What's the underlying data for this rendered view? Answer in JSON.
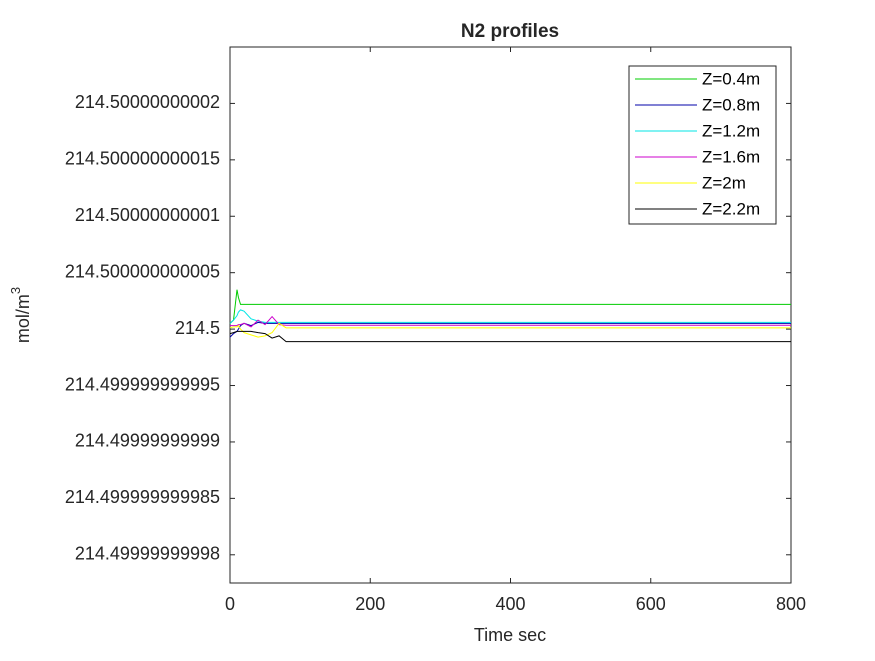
{
  "chart_data": {
    "type": "line",
    "title": "N2 profiles",
    "xlabel": "Time sec",
    "ylabel": {
      "text": "mol/m",
      "sup": "3"
    },
    "x": [
      0,
      5,
      10,
      12,
      15,
      20,
      30,
      40,
      50,
      60,
      70,
      80,
      90,
      800
    ],
    "series": [
      {
        "name": "Z=0.4m",
        "color": "#00cc00",
        "values": [
          214.5000000000005,
          214.5000000000008,
          214.5000000000035,
          214.5000000000028,
          214.5000000000022,
          214.5000000000022,
          214.5000000000022,
          214.5000000000022,
          214.5000000000022,
          214.5000000000022,
          214.5000000000022,
          214.5000000000022,
          214.5000000000022,
          214.5000000000022
        ]
      },
      {
        "name": "Z=0.8m",
        "color": "#0000aa",
        "values": [
          214.4999999999993,
          214.4999999999996,
          214.4999999999998,
          214.5,
          214.5000000000003,
          214.5000000000005,
          214.5000000000003,
          214.5000000000006,
          214.5000000000005,
          214.5000000000005,
          214.5000000000005,
          214.5000000000005,
          214.5000000000005,
          214.5000000000005
        ]
      },
      {
        "name": "Z=1.2m",
        "color": "#00e5e5",
        "values": [
          214.5000000000005,
          214.5000000000008,
          214.5000000000012,
          214.5000000000015,
          214.5000000000017,
          214.5000000000016,
          214.5000000000009,
          214.5000000000007,
          214.5000000000006,
          214.5000000000006,
          214.5000000000006,
          214.5000000000006,
          214.5000000000006,
          214.5000000000006
        ]
      },
      {
        "name": "Z=1.6m",
        "color": "#cc00cc",
        "values": [
          214.5000000000003,
          214.5000000000003,
          214.5000000000003,
          214.5000000000004,
          214.5000000000004,
          214.5000000000005,
          214.5000000000002,
          214.5000000000008,
          214.5000000000004,
          214.5000000000011,
          214.5000000000004,
          214.50000000000034,
          214.50000000000034,
          214.50000000000034
        ]
      },
      {
        "name": "Z=2m",
        "color": "#ffff00",
        "values": [
          214.5000000000001,
          214.5000000000002,
          214.5000000000002,
          214.5000000000003,
          214.5,
          214.4999999999997,
          214.4999999999995,
          214.4999999999993,
          214.4999999999994,
          214.4999999999997,
          214.5000000000005,
          214.5000000000001,
          214.5000000000001,
          214.5000000000001
        ]
      },
      {
        "name": "Z=2.2m",
        "color": "#000000",
        "values": [
          214.4999999999996,
          214.4999999999997,
          214.4999999999998,
          214.4999999999998,
          214.4999999999998,
          214.4999999999998,
          214.4999999999998,
          214.4999999999997,
          214.4999999999996,
          214.4999999999992,
          214.4999999999994,
          214.4999999999989,
          214.4999999999989,
          214.4999999999989
        ]
      }
    ],
    "xlim": [
      0,
      800
    ],
    "xticks": [
      0,
      200,
      400,
      600,
      800
    ],
    "ylim": [
      214.4999999999775,
      214.500000000025
    ],
    "yticks": [
      {
        "value": 214.49999999998,
        "label": "214.49999999998"
      },
      {
        "value": 214.499999999985,
        "label": "214.499999999985"
      },
      {
        "value": 214.49999999999,
        "label": "214.49999999999"
      },
      {
        "value": 214.499999999995,
        "label": "214.499999999995"
      },
      214.5,
      {
        "value": 214.500000000005,
        "label": "214.500000000005"
      },
      {
        "value": 214.50000000001,
        "label": "214.50000000001"
      },
      {
        "value": 214.500000000015,
        "label": "214.500000000015"
      },
      {
        "value": 214.50000000002,
        "label": "214.50000000002"
      }
    ],
    "legend": "top-right",
    "grid": false
  }
}
